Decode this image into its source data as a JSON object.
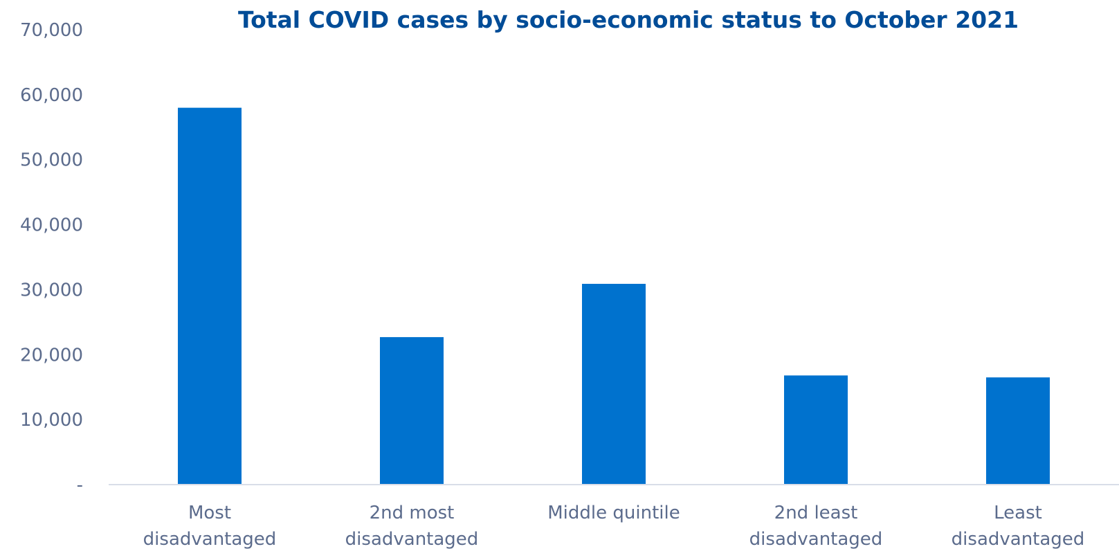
{
  "chart_data": {
    "type": "bar",
    "title": "Total COVID cases by socio-economic status to October 2021",
    "xlabel": "",
    "ylabel": "",
    "ylim": [
      0,
      70000
    ],
    "yticks": [
      0,
      10000,
      20000,
      30000,
      40000,
      50000,
      60000,
      70000
    ],
    "ytick_labels": [
      "-",
      "10,000",
      "20,000",
      "30,000",
      "40,000",
      "50,000",
      "60,000",
      "70,000"
    ],
    "grid": false,
    "legend": "none",
    "categories": [
      [
        "Most",
        "disadvantaged"
      ],
      [
        "2nd most",
        "disadvantaged"
      ],
      [
        "Middle quintile"
      ],
      [
        "2nd least",
        "disadvantaged"
      ],
      [
        "Least",
        "disadvantaged"
      ]
    ],
    "values": [
      58000,
      22700,
      30900,
      16800,
      16500
    ],
    "colors": {
      "bar": "#0072ce",
      "title": "#004c97",
      "axis_text": "#5b6b8c",
      "axis_line": "#d9dde8"
    }
  }
}
